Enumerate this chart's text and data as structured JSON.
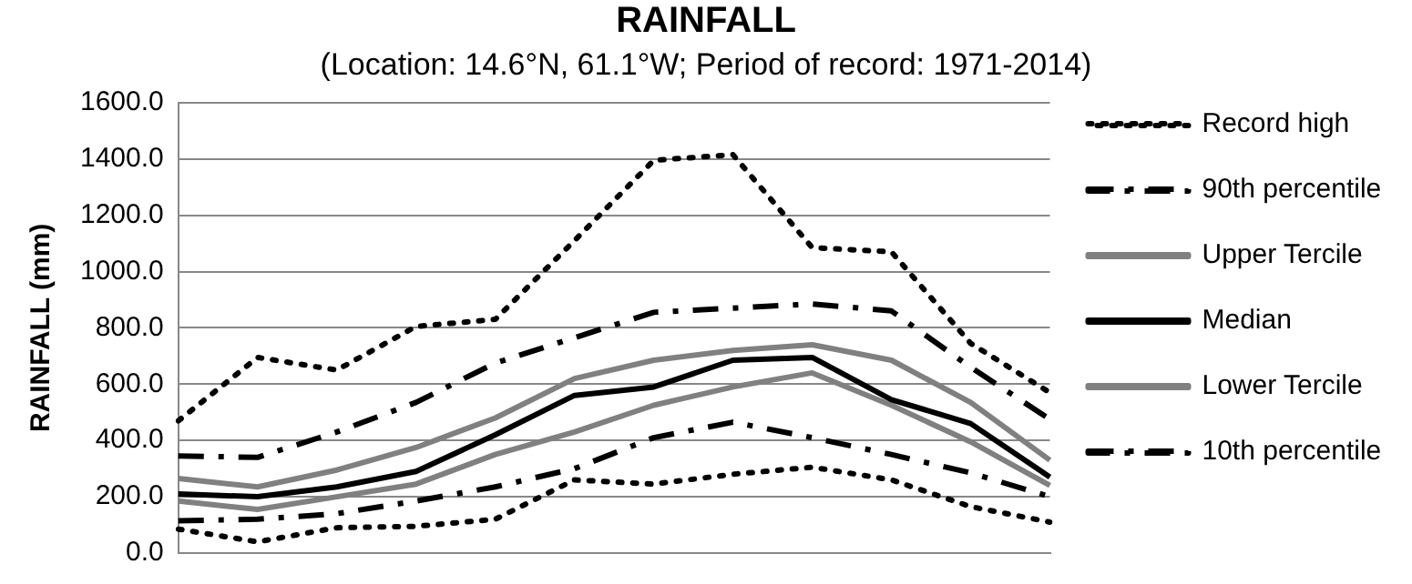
{
  "chart_data": {
    "type": "line",
    "title": "RAINFALL",
    "subtitle": "(Location: 14.6°N, 61.1°W; Period of record: 1971-2014)",
    "ylabel": "RAINFALL (mm)",
    "categories": [
      null,
      null,
      null,
      null,
      null,
      null,
      null,
      null,
      null,
      null,
      null,
      null
    ],
    "series": [
      {
        "name": "Record high",
        "color": "#000000",
        "line_style": "dotted",
        "values": [
          470,
          695,
          650,
          805,
          830,
          1110,
          1395,
          1415,
          1085,
          1070,
          745,
          570
        ]
      },
      {
        "name": "90th percentile",
        "color": "#000000",
        "line_style": "dashed",
        "values": [
          345,
          340,
          430,
          535,
          675,
          765,
          855,
          870,
          885,
          860,
          660,
          475
        ]
      },
      {
        "name": "Upper Tercile",
        "color": "#808080",
        "line_style": "solid",
        "values": [
          265,
          235,
          295,
          375,
          480,
          620,
          685,
          720,
          740,
          685,
          535,
          330
        ]
      },
      {
        "name": "Median",
        "color": "#000000",
        "line_style": "solid",
        "values": [
          210,
          200,
          235,
          290,
          420,
          560,
          590,
          685,
          695,
          545,
          460,
          270
        ]
      },
      {
        "name": "Lower Tercile",
        "color": "#808080",
        "line_style": "solid",
        "values": [
          185,
          155,
          200,
          245,
          350,
          430,
          525,
          590,
          640,
          525,
          395,
          240
        ]
      },
      {
        "name": "10th percentile",
        "color": "#000000",
        "line_style": "dashed",
        "values": [
          115,
          120,
          140,
          185,
          235,
          300,
          410,
          465,
          410,
          350,
          285,
          200
        ]
      },
      {
        "color": "#000000",
        "line_style": "dotted",
        "values": [
          85,
          40,
          90,
          95,
          120,
          260,
          245,
          280,
          305,
          260,
          165,
          110
        ]
      }
    ],
    "ylim": [
      0,
      1600
    ],
    "yticks": [
      {
        "value": 0,
        "label": "0.0"
      },
      {
        "value": 200,
        "label": "200.0"
      },
      {
        "value": 400,
        "label": "400.0"
      },
      {
        "value": 600,
        "label": "600.0"
      },
      {
        "value": 800,
        "label": "800.0"
      },
      {
        "value": 1000,
        "label": "1000.0"
      },
      {
        "value": 1200,
        "label": "1200.0"
      },
      {
        "value": 1400,
        "label": "1400.0"
      },
      {
        "value": 1600,
        "label": "1600.0"
      }
    ],
    "grid": "y",
    "legend": "right",
    "marker": "none",
    "tick_labels": "y"
  }
}
